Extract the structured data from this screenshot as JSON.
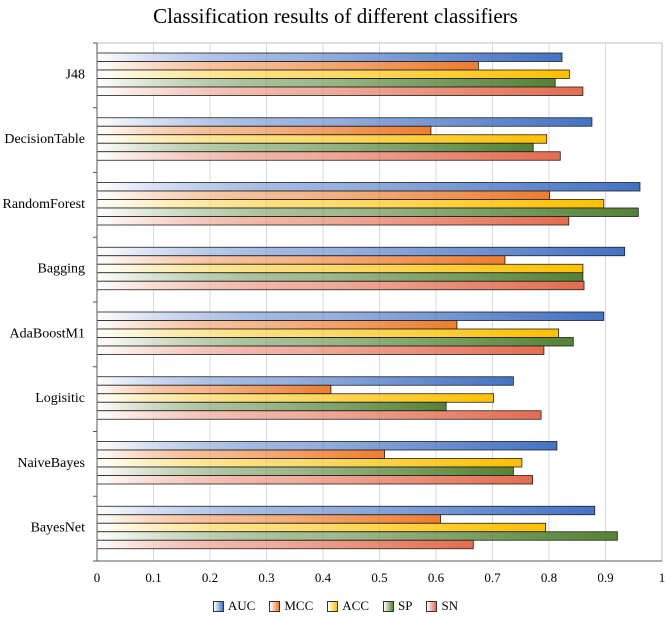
{
  "chart_data": {
    "type": "bar",
    "orientation": "horizontal",
    "title": "Classification results of different classifiers",
    "categories": [
      "J48",
      "DecisionTable",
      "RandomForest",
      "Bagging",
      "AdaBoostM1",
      "Logisitic",
      "NaiveBayes",
      "BayesNet"
    ],
    "series": [
      {
        "name": "AUC",
        "color": "#4472C4",
        "values": [
          0.823,
          0.876,
          0.961,
          0.934,
          0.897,
          0.737,
          0.814,
          0.881
        ]
      },
      {
        "name": "MCC",
        "color": "#ED7D31",
        "values": [
          0.675,
          0.591,
          0.801,
          0.722,
          0.637,
          0.414,
          0.509,
          0.608
        ]
      },
      {
        "name": "ACC",
        "color": "#FFC000",
        "values": [
          0.836,
          0.796,
          0.897,
          0.86,
          0.817,
          0.702,
          0.752,
          0.794
        ]
      },
      {
        "name": "SP",
        "color": "#548235",
        "values": [
          0.811,
          0.772,
          0.958,
          0.86,
          0.843,
          0.618,
          0.737,
          0.921
        ]
      },
      {
        "name": "SN",
        "color": "#E46C50",
        "values": [
          0.86,
          0.82,
          0.835,
          0.862,
          0.791,
          0.786,
          0.771,
          0.666
        ]
      }
    ],
    "xlim": [
      0,
      1
    ],
    "xticks": [
      "0",
      "0.1",
      "0.2",
      "0.3",
      "0.4",
      "0.5",
      "0.6",
      "0.7",
      "0.8",
      "0.9",
      "1"
    ],
    "xlabel": "",
    "ylabel": "",
    "grid": "vertical",
    "legend": [
      "AUC",
      "MCC",
      "ACC",
      "SP",
      "SN"
    ],
    "legend_position": "bottom"
  }
}
